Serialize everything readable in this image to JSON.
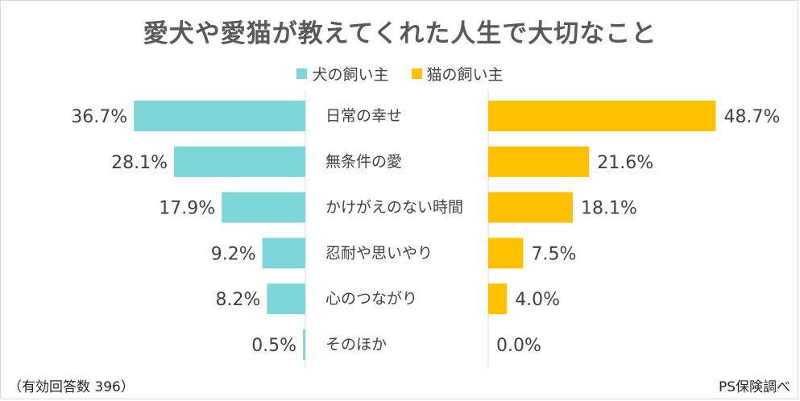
{
  "chart_data": {
    "type": "bar",
    "title": "愛犬や愛猫が教えてくれた人生で大切なこと",
    "categories": [
      "日常の幸せ",
      "無条件の愛",
      "かけがえのない時間",
      "忍耐や思いやり",
      "心のつながり",
      "そのほか"
    ],
    "series": [
      {
        "name": "犬の飼い主",
        "values": [
          36.7,
          28.1,
          17.9,
          9.2,
          8.2,
          0.5
        ],
        "labels": [
          "36.7%",
          "28.1%",
          "17.9%",
          "9.2%",
          "8.2%",
          "0.5%"
        ],
        "color": "#7fd6d9"
      },
      {
        "name": "猫の飼い主",
        "values": [
          48.7,
          21.6,
          18.1,
          7.5,
          4.0,
          0.0
        ],
        "labels": [
          "48.7%",
          "21.6%",
          "18.1%",
          "7.5%",
          "4.0%",
          "0.0%"
        ],
        "color": "#ffc000"
      }
    ],
    "unit": "%",
    "xlim": [
      0,
      50
    ]
  },
  "footnote_left": "（有効回答数 396）",
  "footnote_right": "PS保険調べ"
}
